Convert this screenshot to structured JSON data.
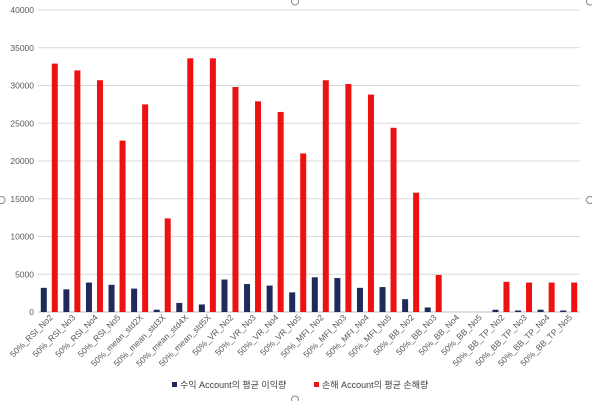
{
  "chart_data": {
    "type": "bar",
    "categories": [
      "50%_RSI_No2",
      "50%_RSI_No3",
      "50%_RSI_No4",
      "50%_RSI_No5",
      "50%_mean_std2X",
      "50%_mean_std3X",
      "50%_mean_std4X",
      "50%_mean_std5X",
      "50%_VR_No2",
      "50%_VR_No3",
      "50%_VR_No4",
      "50%_VR_No5",
      "50%_MFI_No2",
      "50%_MFI_No3",
      "50%_MFI_No4",
      "50%_MFI_No5",
      "50%_BB_No2",
      "50%_BB_No3",
      "50%_BB_No4",
      "50%_BB_No5",
      "50%_BB_TP_No2",
      "50%_BB_TP_No3",
      "50%_BB_TP_No4",
      "50%_BB_TP_No5"
    ],
    "series": [
      {
        "name": "수익 Account의 평균 이익량",
        "color": "#1f2a5c",
        "values": [
          3200,
          3000,
          3900,
          3600,
          3100,
          300,
          1200,
          1000,
          4300,
          3700,
          3500,
          2600,
          4600,
          4500,
          3200,
          3300,
          1700,
          600,
          0,
          0,
          300,
          200,
          300,
          200
        ]
      },
      {
        "name": "손해 Account의 평균 손해량",
        "color": "#ee1111",
        "values": [
          32900,
          32000,
          30700,
          22700,
          27500,
          12400,
          33600,
          33600,
          29800,
          27900,
          26500,
          21000,
          30700,
          30200,
          28800,
          24400,
          15800,
          4900,
          0,
          0,
          4000,
          3900,
          3900,
          3900
        ]
      }
    ],
    "yticks": [
      "0",
      "5000",
      "10000",
      "15000",
      "20000",
      "25000",
      "30000",
      "35000",
      "40000"
    ],
    "ylim": [
      0,
      40000
    ],
    "grid": true,
    "legend_position": "bottom"
  }
}
